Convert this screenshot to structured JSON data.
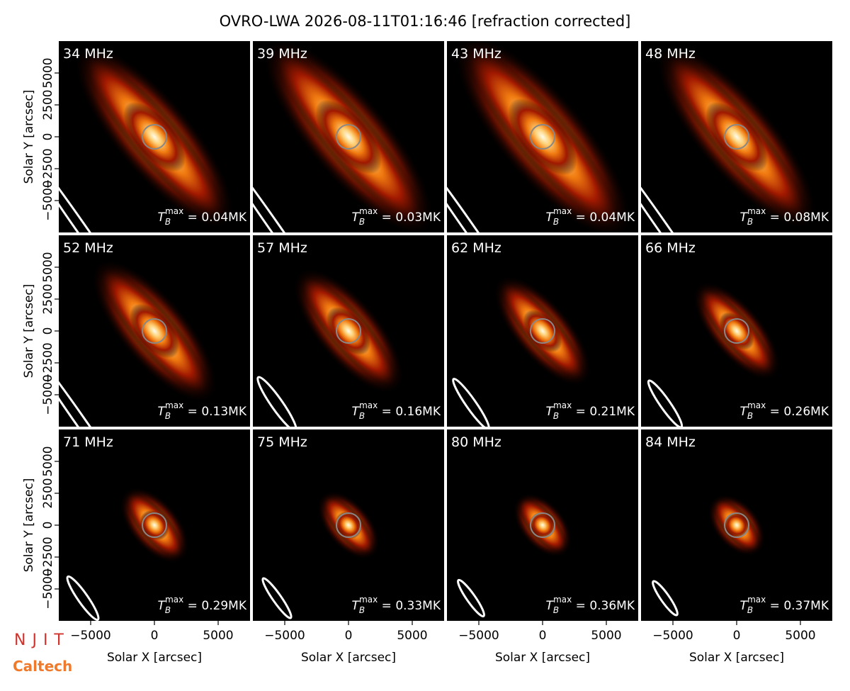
{
  "title": "OVRO-LWA 2026-08-11T01:16:46 [refraction corrected]",
  "axes": {
    "xlabel": "Solar X [arcsec]",
    "ylabel": "Solar Y [arcsec]",
    "xlim": [
      -7500,
      7500
    ],
    "ylim": [
      -7500,
      7500
    ],
    "xticks": [
      {
        "value": -5000,
        "label": "−5000"
      },
      0,
      5000
    ],
    "yticks": [
      {
        "value": -5000,
        "label": "−5000"
      },
      {
        "value": -2500,
        "label": "−2500"
      },
      0,
      2500,
      5000
    ]
  },
  "tb": {
    "symbol": "T",
    "subscript": "B",
    "superscript": "max",
    "relation": " = ",
    "unit": "MK"
  },
  "logos": [
    "NJIT",
    "Caltech"
  ],
  "chart_data": [
    {
      "type": "image",
      "label": "34 MHz",
      "tb_max": 0.04
    },
    {
      "type": "image",
      "label": "39 MHz",
      "tb_max": 0.03
    },
    {
      "type": "image",
      "label": "43 MHz",
      "tb_max": 0.04
    },
    {
      "type": "image",
      "label": "48 MHz",
      "tb_max": 0.08
    },
    {
      "type": "image",
      "label": "52 MHz",
      "tb_max": 0.13
    },
    {
      "type": "image",
      "label": "57 MHz",
      "tb_max": 0.16
    },
    {
      "type": "image",
      "label": "62 MHz",
      "tb_max": 0.21
    },
    {
      "type": "image",
      "label": "66 MHz",
      "tb_max": 0.26
    },
    {
      "type": "image",
      "label": "71 MHz",
      "tb_max": 0.29
    },
    {
      "type": "image",
      "label": "75 MHz",
      "tb_max": 0.33
    },
    {
      "type": "image",
      "label": "80 MHz",
      "tb_max": 0.36
    },
    {
      "type": "image",
      "label": "84 MHz",
      "tb_max": 0.37
    }
  ]
}
